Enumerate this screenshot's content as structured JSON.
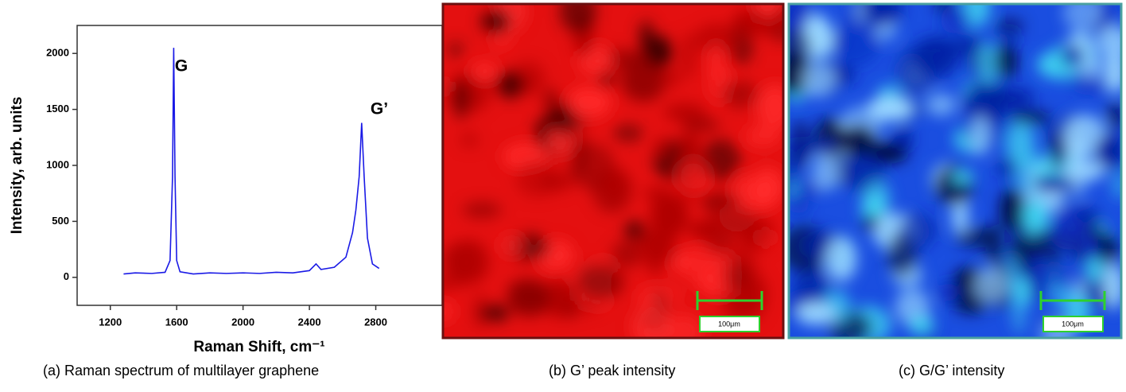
{
  "chart_data": {
    "type": "line",
    "x_label": "Raman Shift, cm⁻¹",
    "y_label": "Intensity, arb. units",
    "annotations": [
      "G",
      "G’"
    ],
    "x": [
      1280,
      1350,
      1450,
      1530,
      1560,
      1575,
      1582,
      1590,
      1600,
      1620,
      1700,
      1800,
      1900,
      2000,
      2100,
      2200,
      2300,
      2400,
      2440,
      2470,
      2550,
      2620,
      2660,
      2680,
      2700,
      2715,
      2730,
      2750,
      2780,
      2820
    ],
    "series": [
      {
        "color": "#1a1ae6",
        "values": [
          30,
          40,
          35,
          45,
          150,
          900,
          2050,
          900,
          150,
          50,
          30,
          40,
          35,
          40,
          35,
          45,
          40,
          60,
          120,
          70,
          90,
          180,
          400,
          600,
          900,
          1380,
          900,
          350,
          120,
          80
        ]
      }
    ],
    "xlim": [
      1000,
      3200
    ],
    "xticks": [
      1200,
      1600,
      2000,
      2400,
      2800
    ],
    "ylim": [
      -250,
      2250
    ],
    "yticks": [
      0,
      500,
      1000,
      1500,
      2000
    ]
  },
  "captions": [
    "(a)   Raman spectrum of multilayer graphene",
    "(b) G’ peak intensity",
    "(c) G/G’ intensity"
  ],
  "maps": [
    {
      "scale_label": "100μm"
    },
    {
      "scale_label": "100μm"
    }
  ]
}
